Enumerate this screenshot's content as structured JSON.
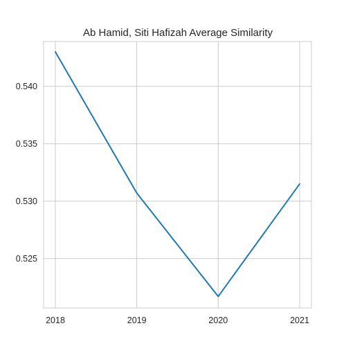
{
  "chart_data": {
    "type": "line",
    "title": "Ab Hamid, Siti Hafizah Average Similarity",
    "xlabel": "",
    "ylabel": "",
    "categories": [
      "2018",
      "2019",
      "2020",
      "2021"
    ],
    "series": [
      {
        "values": [
          0.543,
          0.5307,
          0.5217,
          0.5315
        ],
        "color": "#1f77b4"
      }
    ],
    "yticks": [
      0.525,
      0.53,
      0.535,
      0.54
    ],
    "ytick_labels": [
      "0.525",
      "0.530",
      "0.535",
      "0.540"
    ],
    "ylim": [
      0.5207,
      0.5439
    ],
    "grid": true,
    "legend": "none",
    "colors": {
      "grid": "#cccccc",
      "axes_edge": "#cccccc",
      "text": "#262626"
    }
  }
}
